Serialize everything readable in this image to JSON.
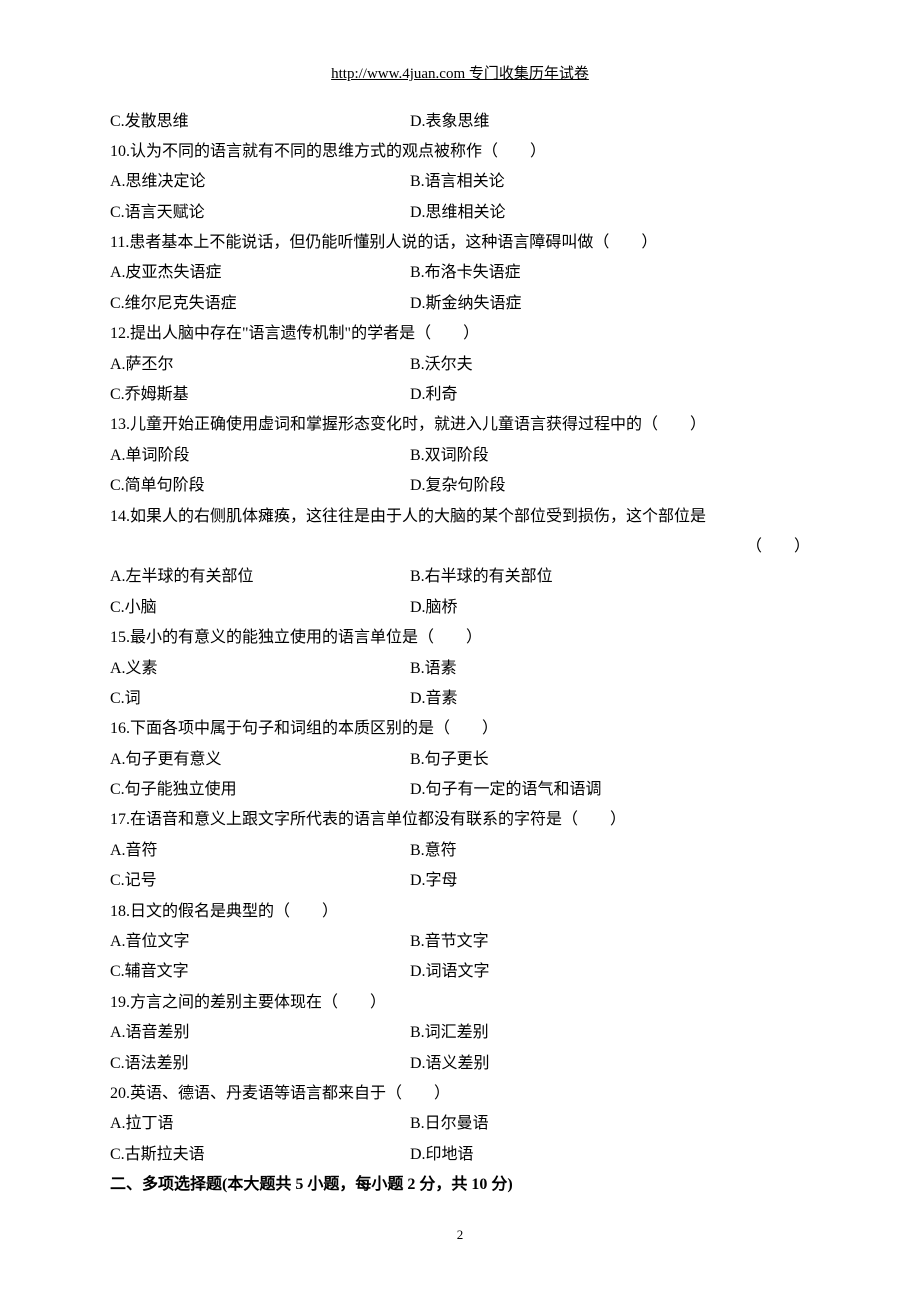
{
  "header": "http://www.4juan.com 专门收集历年试卷",
  "q9": {
    "optC": "C.发散思维",
    "optD": "D.表象思维"
  },
  "q10": {
    "stem": "10.认为不同的语言就有不同的思维方式的观点被称作（　　）",
    "optA": "A.思维决定论",
    "optB": "B.语言相关论",
    "optC": "C.语言天赋论",
    "optD": "D.思维相关论"
  },
  "q11": {
    "stem": "11.患者基本上不能说话，但仍能听懂别人说的话，这种语言障碍叫做（　　）",
    "optA": "A.皮亚杰失语症",
    "optB": "B.布洛卡失语症",
    "optC": "C.维尔尼克失语症",
    "optD": "D.斯金纳失语症"
  },
  "q12": {
    "stem": "12.提出人脑中存在\"语言遗传机制\"的学者是（　　）",
    "optA": "A.萨丕尔",
    "optB": "B.沃尔夫",
    "optC": "C.乔姆斯基",
    "optD": "D.利奇"
  },
  "q13": {
    "stem": "13.儿童开始正确使用虚词和掌握形态变化时，就进入儿童语言获得过程中的（　　）",
    "optA": "A.单词阶段",
    "optB": "B.双词阶段",
    "optC": "C.简单句阶段",
    "optD": "D.复杂句阶段"
  },
  "q14": {
    "stem1": "14.如果人的右侧肌体瘫痪，这往往是由于人的大脑的某个部位受到损伤，这个部位是",
    "stem2": "（　　）",
    "optA": "A.左半球的有关部位",
    "optB": "B.右半球的有关部位",
    "optC": "C.小脑",
    "optD": "D.脑桥"
  },
  "q15": {
    "stem": "15.最小的有意义的能独立使用的语言单位是（　　）",
    "optA": "A.义素",
    "optB": "B.语素",
    "optC": "C.词",
    "optD": "D.音素"
  },
  "q16": {
    "stem": "16.下面各项中属于句子和词组的本质区别的是（　　）",
    "optA": "A.句子更有意义",
    "optB": "B.句子更长",
    "optC": "C.句子能独立使用",
    "optD": "D.句子有一定的语气和语调"
  },
  "q17": {
    "stem": "17.在语音和意义上跟文字所代表的语言单位都没有联系的字符是（　　）",
    "optA": "A.音符",
    "optB": "B.意符",
    "optC": "C.记号",
    "optD": "D.字母"
  },
  "q18": {
    "stem": "18.日文的假名是典型的（　　）",
    "optA": "A.音位文字",
    "optB": "B.音节文字",
    "optC": "C.辅音文字",
    "optD": "D.词语文字"
  },
  "q19": {
    "stem": "19.方言之间的差别主要体现在（　　）",
    "optA": "A.语音差别",
    "optB": "B.词汇差别",
    "optC": "C.语法差别",
    "optD": "D.语义差别"
  },
  "q20": {
    "stem": "20.英语、德语、丹麦语等语言都来自于（　　）",
    "optA": "A.拉丁语",
    "optB": "B.日尔曼语",
    "optC": "C.古斯拉夫语",
    "optD": "D.印地语"
  },
  "section2": "二、多项选择题(本大题共 5 小题，每小题 2 分，共 10 分)",
  "pageNum": "2"
}
